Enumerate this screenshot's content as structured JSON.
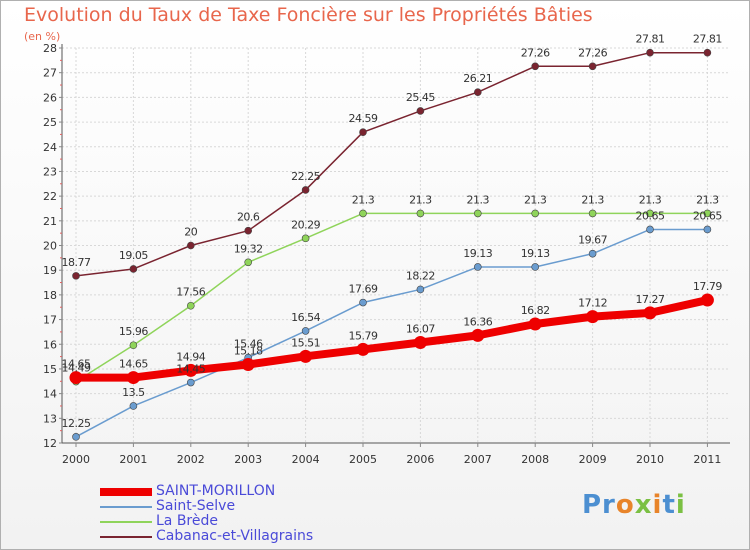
{
  "title": "Evolution du Taux de Taxe Foncière sur les Propriétés Bâties",
  "unit_label": "(en %)",
  "logo_text": "Proxiti",
  "chart_data": {
    "type": "line",
    "x": [
      "2000",
      "2001",
      "2002",
      "2003",
      "2004",
      "2005",
      "2006",
      "2007",
      "2008",
      "2009",
      "2010",
      "2011"
    ],
    "ylim": [
      12,
      28
    ],
    "yticks": [
      12,
      13,
      14,
      15,
      16,
      17,
      18,
      19,
      20,
      21,
      22,
      23,
      24,
      25,
      26,
      27,
      28
    ],
    "grid": true,
    "legend_position": "bottom-left",
    "series": [
      {
        "name": "SAINT-MORILLON",
        "color": "#ee0000",
        "width": 8,
        "values": [
          14.65,
          14.65,
          14.94,
          15.18,
          15.51,
          15.79,
          16.07,
          16.36,
          16.82,
          17.12,
          17.27,
          17.79
        ],
        "labels": [
          "14.65",
          "14.65",
          "14.94",
          "15.18",
          "15.51",
          "15.79",
          "16.07",
          "16.36",
          "16.82",
          "17.12",
          "17.27",
          "17.79"
        ]
      },
      {
        "name": "Saint-Selve",
        "color": "#6a9ccf",
        "width": 1.5,
        "values": [
          12.25,
          13.5,
          14.45,
          15.46,
          16.54,
          17.69,
          18.22,
          19.13,
          19.13,
          19.67,
          20.65,
          20.65
        ],
        "labels": [
          "12.25",
          "13.5",
          "14.45",
          "15.46",
          "16.54",
          "17.69",
          "18.22",
          "19.13",
          "19.13",
          "19.67",
          "20.65",
          "20.65"
        ]
      },
      {
        "name": "La Brède",
        "color": "#8fd45a",
        "width": 1.5,
        "values": [
          14.49,
          15.96,
          17.56,
          19.32,
          20.29,
          21.3,
          21.3,
          21.3,
          21.3,
          21.3,
          21.3,
          21.3
        ],
        "labels": [
          "14.49",
          "15.96",
          "17.56",
          "19.32",
          "20.29",
          "21.3",
          "21.3",
          "21.3",
          "21.3",
          "21.3",
          "21.3",
          "21.3"
        ]
      },
      {
        "name": "Cabanac-et-Villagrains",
        "color": "#7a2430",
        "width": 1.5,
        "values": [
          18.77,
          19.05,
          20,
          20.6,
          22.25,
          24.59,
          25.45,
          26.21,
          27.26,
          27.26,
          27.81,
          27.81
        ],
        "labels": [
          "18.77",
          "19.05",
          "20",
          "20.6",
          "22.25",
          "24.59",
          "25.45",
          "26.21",
          "27.26",
          "27.26",
          "27.81",
          "27.81"
        ]
      }
    ]
  }
}
